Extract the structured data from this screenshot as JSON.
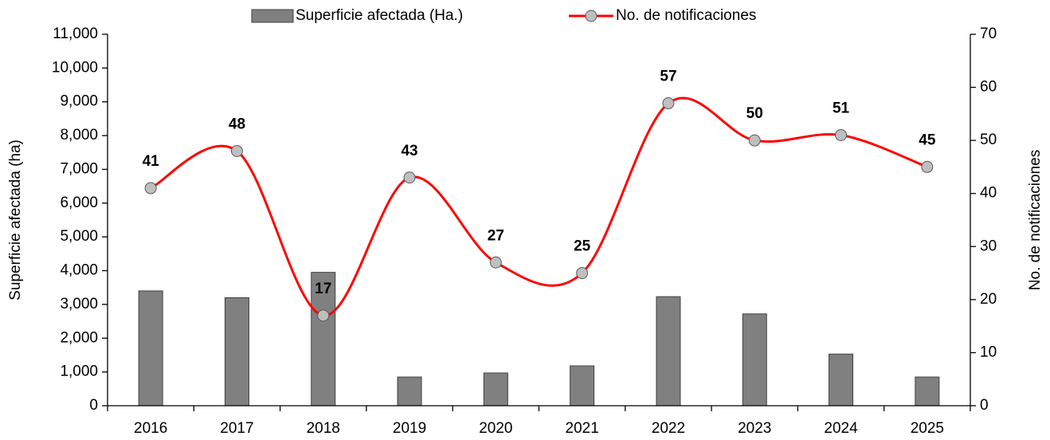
{
  "chart_data": {
    "type": "bar_line",
    "categories": [
      "2016",
      "2017",
      "2018",
      "2019",
      "2020",
      "2021",
      "2022",
      "2023",
      "2024",
      "2025"
    ],
    "series": [
      {
        "name": "Superficie afectada (Ha.)",
        "color": "#808080",
        "type": "bar",
        "axis": "y",
        "values": [
          3400,
          3200,
          3950,
          850,
          970,
          1180,
          3230,
          2720,
          1530,
          850
        ]
      },
      {
        "name": "No. de notificaciones",
        "color": "#ff0000",
        "marker_color": "#bfbfbf",
        "type": "line",
        "axis": "y2",
        "smooth": true,
        "values": [
          41,
          48,
          17,
          43,
          27,
          25,
          57,
          50,
          51,
          45
        ]
      }
    ],
    "ylabel": "Superficie afectada (ha)",
    "y2label": "No. de notificaciones",
    "ylim": [
      0,
      11000
    ],
    "yticks": [
      0,
      {
        "value": 1000,
        "label": "1,000"
      },
      {
        "value": 2000,
        "label": "2,000"
      },
      {
        "value": 3000,
        "label": "3,000"
      },
      {
        "value": 4000,
        "label": "4,000"
      },
      {
        "value": 5000,
        "label": "5,000"
      },
      {
        "value": 6000,
        "label": "6,000"
      },
      {
        "value": 7000,
        "label": "7,000"
      },
      {
        "value": 8000,
        "label": "8,000"
      },
      {
        "value": 9000,
        "label": "9,000"
      },
      {
        "value": 10000,
        "label": "10,000"
      },
      {
        "value": 11000,
        "label": "11,000"
      }
    ],
    "y2lim": [
      0,
      70
    ],
    "y2ticks": [
      0,
      10,
      20,
      30,
      40,
      50,
      60,
      70
    ],
    "grid": false,
    "legend": "top"
  }
}
